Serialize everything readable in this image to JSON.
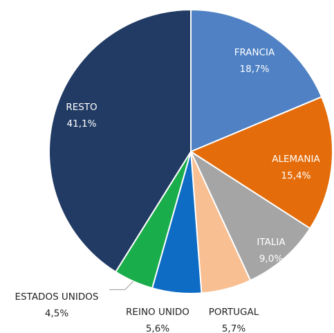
{
  "chart_data": {
    "type": "pie",
    "categories": [
      "FRANCIA",
      "ALEMANIA",
      "ITALIA",
      "PORTUGAL",
      "REINO UNIDO",
      "ESTADOS UNIDOS",
      "RESTO"
    ],
    "values": [
      18.7,
      15.4,
      9.0,
      5.7,
      5.6,
      4.5,
      41.1
    ],
    "value_labels": [
      "18,7%",
      "15,4%",
      "9,0%",
      "5,7%",
      "5,6%",
      "4,5%",
      "41,1%"
    ],
    "colors": [
      "#4f81c4",
      "#e46c0a",
      "#a5a5a5",
      "#f8bf92",
      "#0e6cc4",
      "#1aad4b",
      "#213b64"
    ]
  }
}
